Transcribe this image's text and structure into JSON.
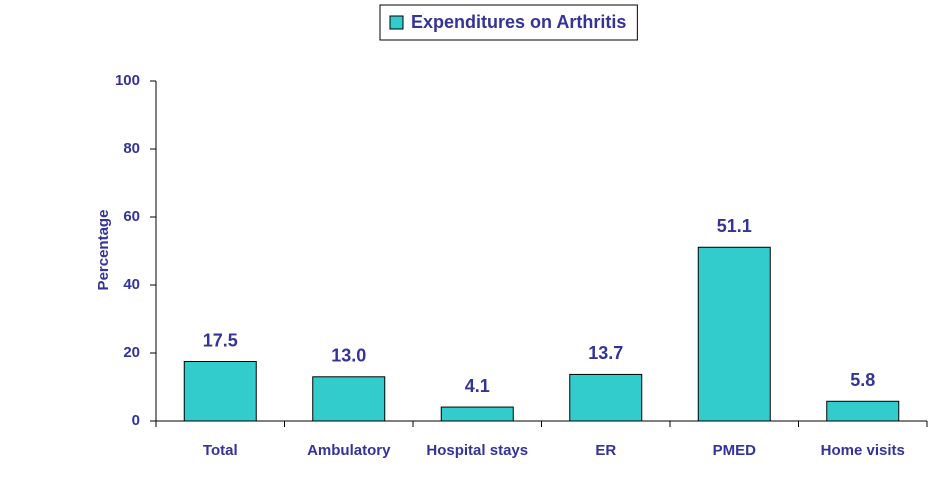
{
  "chart_data": {
    "type": "bar",
    "y_label": "Percentage",
    "categories": [
      "Total",
      "Ambulatory",
      "Hospital stays",
      "ER",
      "PMED",
      "Home visits"
    ],
    "series": [
      {
        "name": "Expenditures on Arthritis",
        "color": "#33cccc",
        "values": [
          17.5,
          13.0,
          4.1,
          13.7,
          51.1,
          5.8
        ],
        "value_labels": [
          "17.5",
          "13.0",
          "4.1",
          "13.7",
          "51.1",
          "5.8"
        ]
      }
    ],
    "ylim": [
      0,
      100
    ],
    "yticks": [
      0,
      20,
      40,
      60,
      80,
      100
    ],
    "grid": false,
    "legend": "top"
  }
}
